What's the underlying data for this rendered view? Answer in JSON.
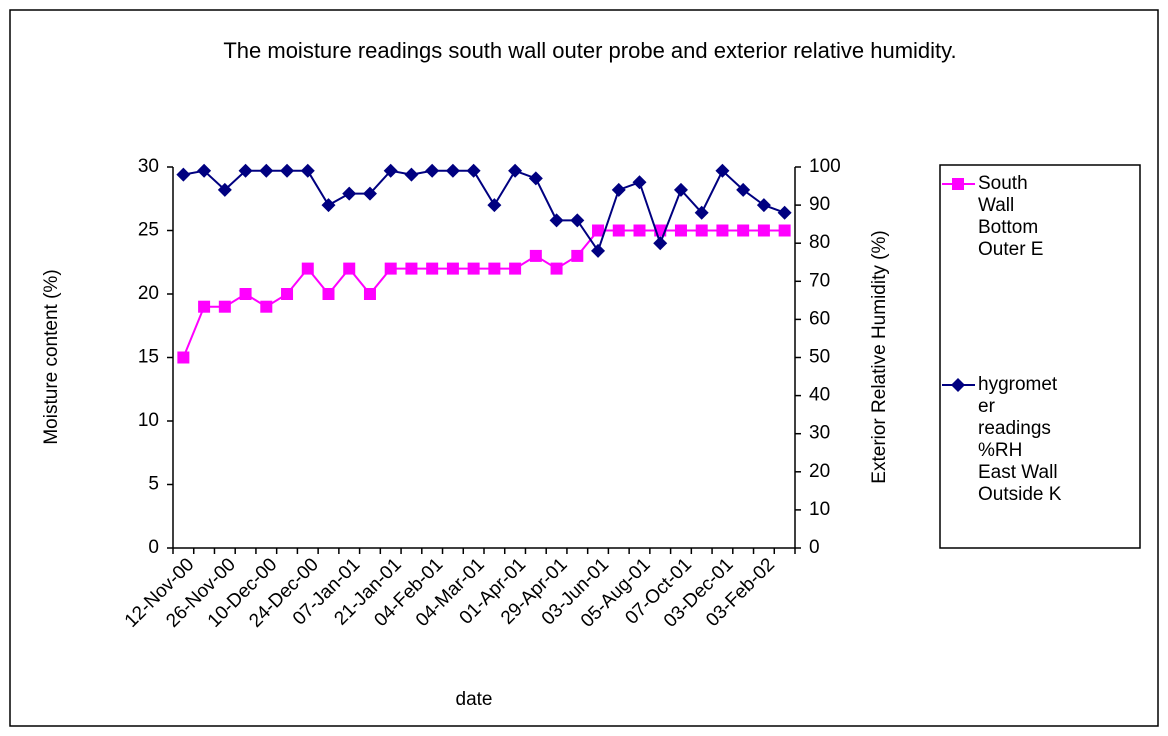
{
  "chart_data": {
    "type": "line",
    "title": "The moisture readings south wall outer probe and exterior relative humidity.",
    "x_label": "date",
    "y_label": "Moisture content (%)",
    "y2_label": "Exterior Relative Humidity (%)",
    "categories": [
      "12-Nov-00",
      null,
      "26-Nov-00",
      null,
      "10-Dec-00",
      null,
      "24-Dec-00",
      null,
      "07-Jan-01",
      null,
      "21-Jan-01",
      null,
      "04-Feb-01",
      null,
      "04-Mar-01",
      null,
      "01-Apr-01",
      null,
      "29-Apr-01",
      null,
      "03-Jun-01",
      null,
      "05-Aug-01",
      null,
      "07-Oct-01",
      null,
      "03-Dec-01",
      null,
      "03-Feb-02",
      null
    ],
    "series": [
      {
        "name": "South Wall Bottom Outer E",
        "color": "#ff00ff",
        "marker": "square",
        "values": [
          15,
          19,
          19,
          20,
          19,
          20,
          22,
          20,
          22,
          20,
          22,
          22,
          22,
          22,
          22,
          22,
          22,
          23,
          22,
          23,
          25,
          25,
          25,
          25,
          25,
          25,
          25,
          25,
          25,
          25
        ]
      },
      {
        "name": " hygrometer readings %RH East Wall Outside K",
        "color": "#000080",
        "marker": "diamond",
        "axis": "y2",
        "values": [
          98,
          99,
          94,
          99,
          99,
          99,
          99,
          90,
          93,
          93,
          99,
          98,
          99,
          99,
          99,
          90,
          99,
          97,
          86,
          86,
          78,
          94,
          96,
          80,
          94,
          88,
          99,
          94,
          90,
          88
        ]
      }
    ],
    "ylim": [
      0,
      30
    ],
    "yticks": [
      0,
      5,
      10,
      15,
      20,
      25,
      30
    ],
    "y2lim": [
      0,
      100
    ],
    "y2ticks": [
      0,
      10,
      20,
      30,
      40,
      50,
      60,
      70,
      80,
      90,
      100
    ],
    "legend": "right"
  }
}
